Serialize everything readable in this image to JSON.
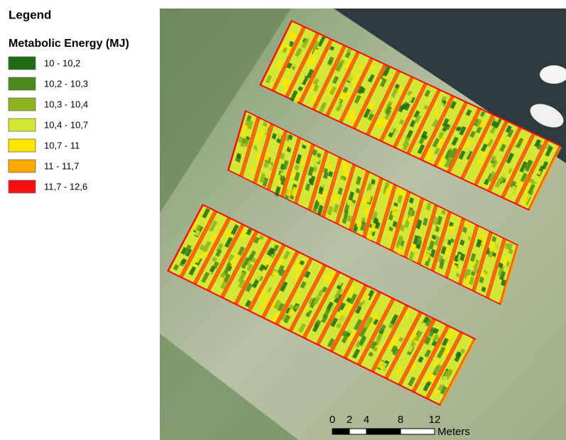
{
  "legend": {
    "title": "Legend",
    "subtitle": "Metabolic Energy (MJ)",
    "classes": [
      {
        "label": "10 - 10,2",
        "color": "#1e6b14"
      },
      {
        "label": "10,2 - 10,3",
        "color": "#4a8a1c"
      },
      {
        "label": "10,3 - 10,4",
        "color": "#8db41f"
      },
      {
        "label": "10,4 - 10,7",
        "color": "#d4e636"
      },
      {
        "label": "10,7 - 11",
        "color": "#ffe600"
      },
      {
        "label": "11 - 11,7",
        "color": "#ffa800"
      },
      {
        "label": "11,7 - 12,6",
        "color": "#f50f0f"
      }
    ]
  },
  "scale_bar": {
    "ticks": [
      0,
      2,
      4,
      8,
      12
    ],
    "unit": "Meters"
  }
}
